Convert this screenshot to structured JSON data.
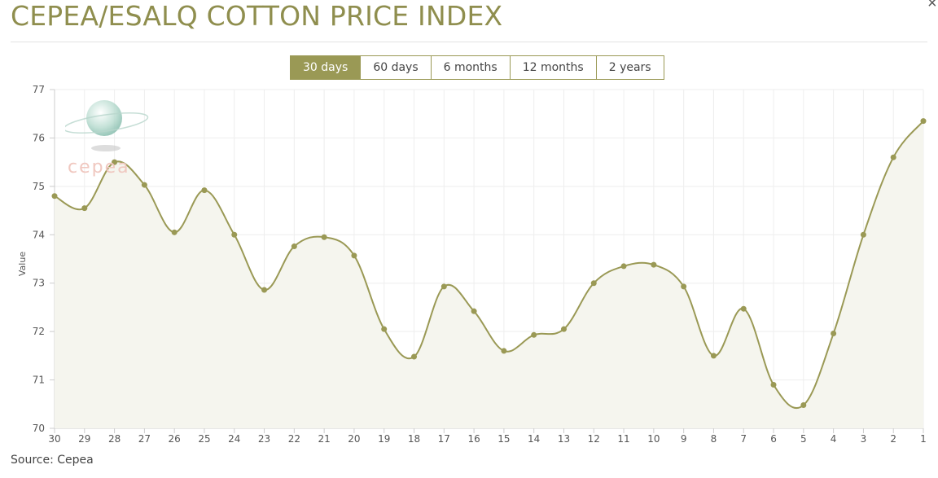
{
  "page": {
    "title": "CEPEA/ESALQ COTTON PRICE INDEX",
    "close_icon": "close-icon",
    "source": "Source: Cepea"
  },
  "tabs": [
    {
      "label": "30 days",
      "active": true
    },
    {
      "label": "60 days",
      "active": false
    },
    {
      "label": "6 months",
      "active": false
    },
    {
      "label": "12 months",
      "active": false
    },
    {
      "label": "2 years",
      "active": false
    }
  ],
  "logo": {
    "text": "cepea",
    "icon": "cepea-globe-logo"
  },
  "colors": {
    "accent": "#9a9955",
    "title": "#8f8e4e",
    "area_fill": "#f5f5ee",
    "grid": "#eeeeee"
  },
  "chart_data": {
    "type": "area",
    "x": [
      "30",
      "29",
      "28",
      "27",
      "26",
      "25",
      "24",
      "23",
      "22",
      "21",
      "20",
      "19",
      "18",
      "17",
      "16",
      "15",
      "14",
      "13",
      "12",
      "11",
      "10",
      "9",
      "8",
      "7",
      "6",
      "5",
      "4",
      "3",
      "2",
      "1"
    ],
    "series": [
      {
        "values": [
          74.8,
          74.55,
          75.5,
          75.03,
          74.05,
          74.92,
          74.0,
          72.86,
          73.76,
          73.95,
          73.57,
          72.05,
          71.48,
          72.93,
          72.42,
          71.6,
          71.93,
          72.05,
          73.0,
          73.35,
          73.38,
          72.93,
          71.5,
          72.47,
          70.9,
          70.48,
          71.96,
          74.0,
          75.6,
          76.35
        ]
      }
    ],
    "ylabel": "Value",
    "ylim": [
      70,
      77
    ],
    "yticks": [
      "70",
      "71",
      "72",
      "73",
      "74",
      "75",
      "76",
      "77"
    ],
    "grid": true,
    "legend": "none"
  }
}
